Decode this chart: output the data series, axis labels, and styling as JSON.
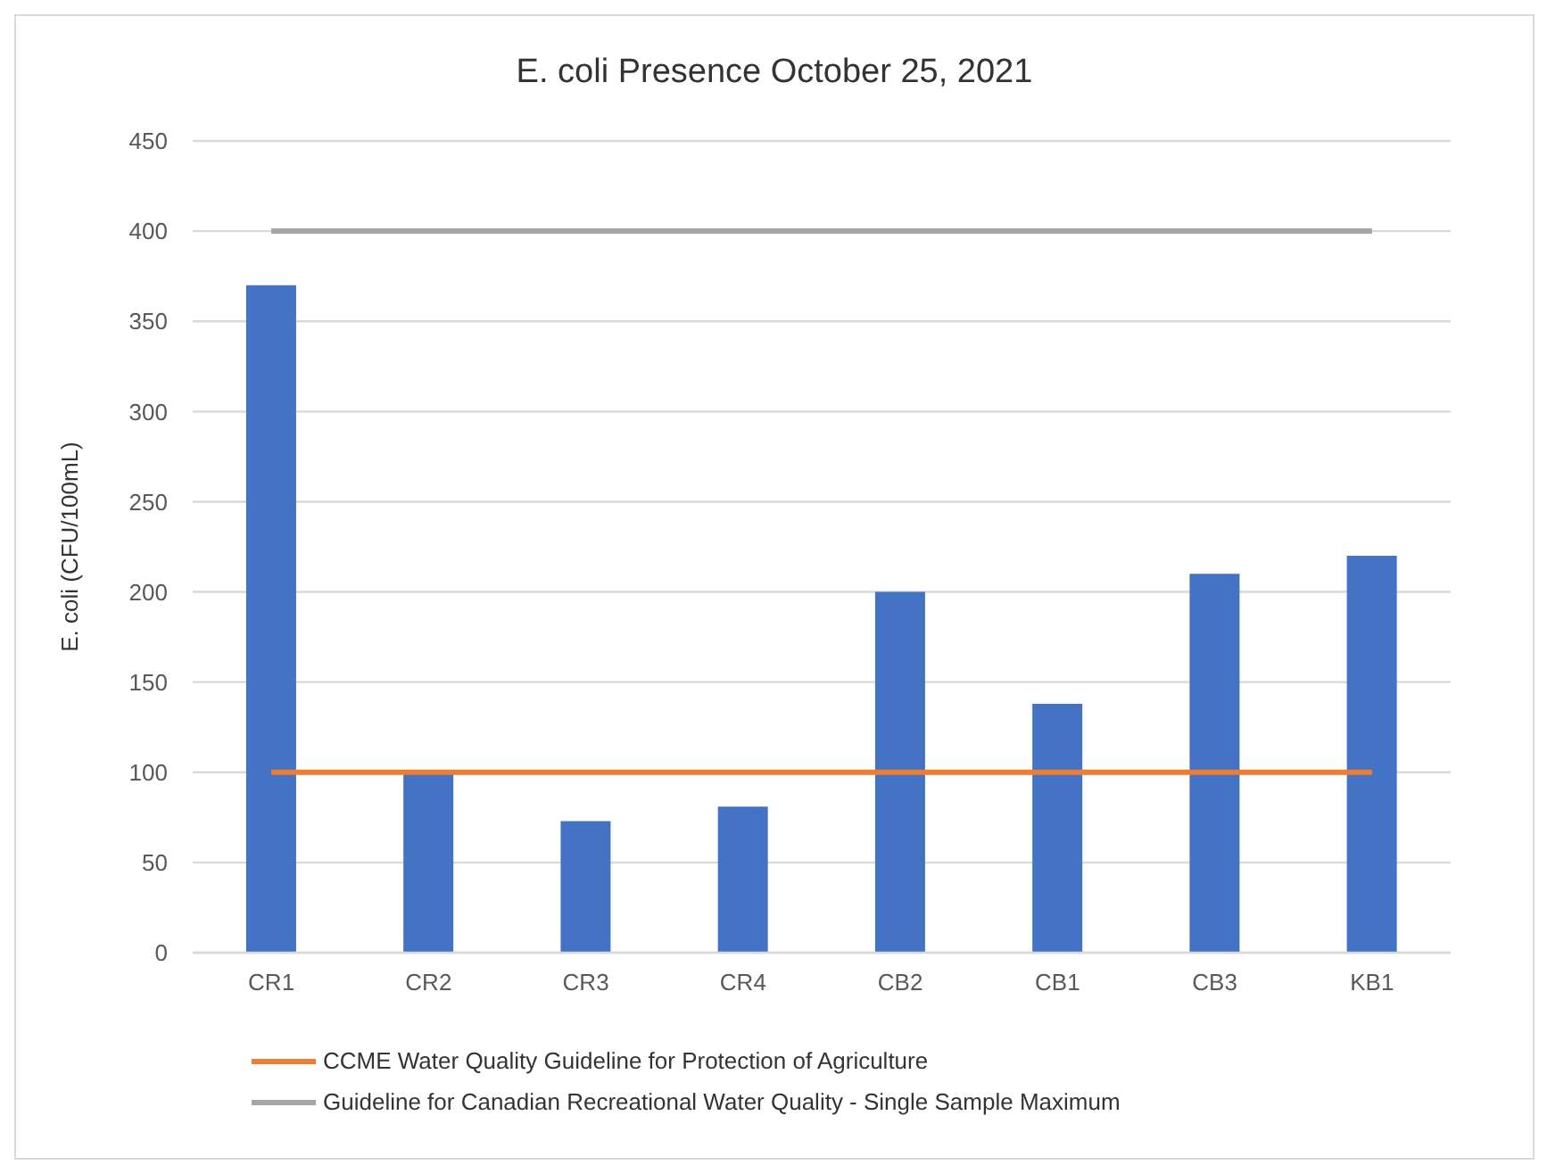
{
  "chart_data": {
    "type": "bar",
    "title": "E. coli Presence October 25, 2021",
    "ylabel": "E. coli (CFU/100mL)",
    "categories": [
      "CR1",
      "CR2",
      "CR3",
      "CR4",
      "CB2",
      "CB1",
      "CB3",
      "KB1"
    ],
    "series": [
      {
        "color": "#4472c4",
        "values": [
          370,
          99,
          73,
          81,
          200,
          138,
          210,
          220
        ]
      },
      {
        "type": "line",
        "name": "CCME Water Quality Guideline for Protection of Agriculture",
        "color": "#ed7d31",
        "values": [
          100,
          100,
          100,
          100,
          100,
          100,
          100,
          100
        ]
      },
      {
        "type": "line",
        "name": "Guideline for Canadian Recreational Water Quality - Single Sample Maximum",
        "color": "#a5a5a5",
        "values": [
          400,
          400,
          400,
          400,
          400,
          400,
          400,
          400
        ]
      }
    ],
    "ylim": [
      0,
      450
    ],
    "yticks": [
      0,
      50,
      100,
      150,
      200,
      250,
      300,
      350,
      400,
      450
    ],
    "grid": "y",
    "legend": "bottom",
    "marker": "none",
    "line_style": "solid"
  }
}
